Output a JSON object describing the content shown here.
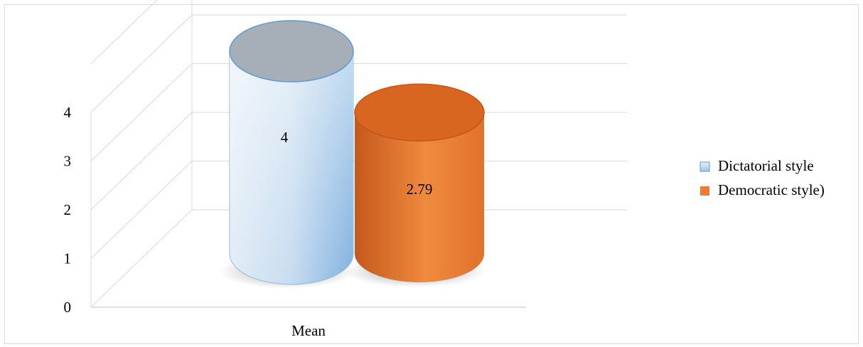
{
  "chart_data": {
    "type": "bar",
    "style": "3d-cylinder",
    "categories": [
      "Mean"
    ],
    "series": [
      {
        "name": "Dictatorial style",
        "values": [
          4
        ],
        "data_label": "4",
        "color": "#9dc3e6"
      },
      {
        "name": "Democratic style)",
        "values": [
          2.79
        ],
        "data_label": "2.79",
        "color": "#ed7d31"
      }
    ],
    "y_ticks": [
      "0",
      "1",
      "2",
      "3",
      "4"
    ],
    "ylim": [
      0,
      5
    ],
    "grid": true,
    "legend_position": "right"
  }
}
